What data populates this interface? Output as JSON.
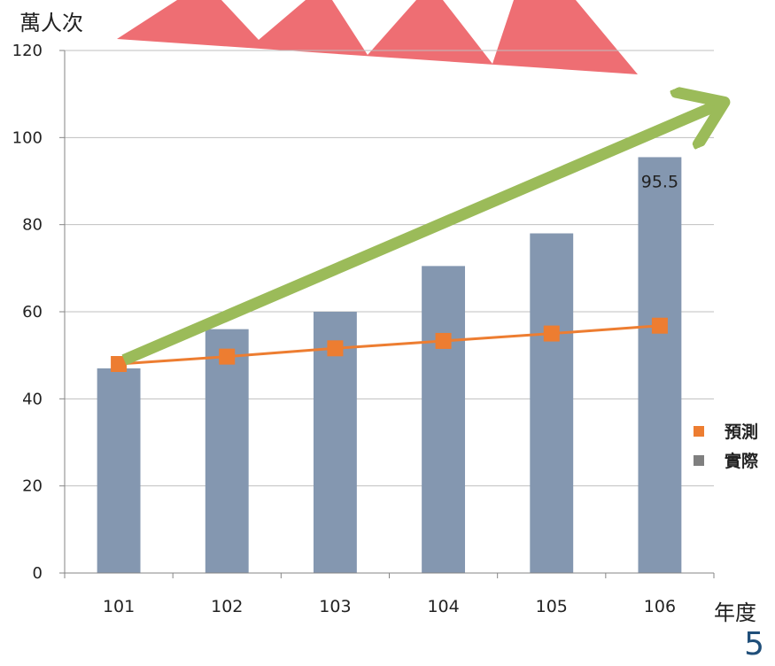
{
  "chart_data": {
    "type": "bar",
    "categories": [
      "101",
      "102",
      "103",
      "104",
      "105",
      "106"
    ],
    "series": [
      {
        "name": "實際",
        "kind": "bar",
        "color": "#8497b0",
        "values": [
          47,
          56,
          60,
          70.5,
          78,
          95.5
        ]
      },
      {
        "name": "預測",
        "kind": "line",
        "color": "#ed7d31",
        "values": [
          48,
          49.7,
          51.6,
          53.3,
          55,
          56.8
        ]
      }
    ],
    "data_labels": [
      {
        "category": "106",
        "series": "實際",
        "text": "95.5"
      }
    ],
    "title": "",
    "ylabel": "萬人次",
    "xlabel": "年度",
    "ylim": [
      0,
      120
    ],
    "yticks": [
      0,
      20,
      40,
      60,
      80,
      100,
      120
    ],
    "grid": true,
    "legend": {
      "position": "right",
      "order": [
        "預測",
        "實際"
      ],
      "label_colors": {
        "預測": "#ed7d31",
        "實際": "#7f7f7f"
      }
    },
    "annotations": [
      {
        "kind": "trend-arrow",
        "color": "#9bbb59",
        "from": {
          "x": "101",
          "y": 53
        },
        "to": {
          "x": "106",
          "y": 112
        }
      },
      {
        "kind": "burst-shape",
        "color": "#ee6e73",
        "location": "top"
      }
    ]
  },
  "page": {
    "number": "5"
  }
}
